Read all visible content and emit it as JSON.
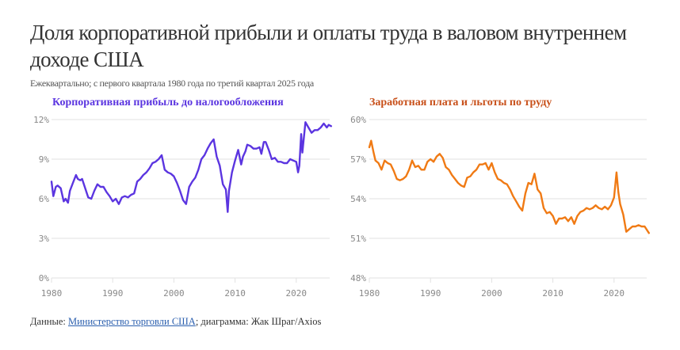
{
  "header": {
    "title": "Доля корпоративной прибыли и оплаты труда в валовом внутреннем доходе США",
    "subtitle": "Ежеквартально; с первого квартала 1980 года по третий квартал 2025 года"
  },
  "footer": {
    "prefix": "Данные: ",
    "source_link": "Министерство торговли США",
    "suffix": "; диаграмма: Жак Шраг/Axios"
  },
  "colors": {
    "profits": "#5b35e0",
    "labor": "#f07a14",
    "profits_title": "#5b35e0",
    "labor_title": "#c8501a",
    "grid": "#e2e2e2"
  },
  "chart_data": [
    {
      "type": "line",
      "title": "Корпоративная прибыль до налогообложения",
      "xlabel": "",
      "ylabel": "",
      "ylim": [
        0,
        12
      ],
      "yticks": [
        "0%",
        "3%",
        "6%",
        "9%",
        "12%"
      ],
      "xticks": [
        "1980",
        "1990",
        "2000",
        "2010",
        "2020"
      ],
      "grid": true,
      "series": [
        {
          "name": "Корпоративная прибыль до налогообложения",
          "x": [
            1980.0,
            1980.3,
            1980.7,
            1981.0,
            1981.5,
            1982.0,
            1982.3,
            1982.7,
            1983.0,
            1983.5,
            1984.0,
            1984.3,
            1984.7,
            1985.0,
            1985.5,
            1986.0,
            1986.5,
            1987.0,
            1987.5,
            1988.0,
            1988.5,
            1989.0,
            1989.5,
            1990.0,
            1990.5,
            1991.0,
            1991.5,
            1992.0,
            1992.5,
            1993.0,
            1993.5,
            1994.0,
            1994.5,
            1995.0,
            1995.5,
            1996.0,
            1996.5,
            1997.0,
            1997.5,
            1998.0,
            1998.5,
            1999.0,
            1999.5,
            2000.0,
            2000.5,
            2001.0,
            2001.5,
            2002.0,
            2002.5,
            2003.0,
            2003.5,
            2004.0,
            2004.5,
            2005.0,
            2005.5,
            2006.0,
            2006.5,
            2007.0,
            2007.5,
            2008.0,
            2008.5,
            2008.8,
            2009.0,
            2009.5,
            2010.0,
            2010.5,
            2011.0,
            2011.3,
            2011.7,
            2012.0,
            2012.5,
            2013.0,
            2013.5,
            2014.0,
            2014.3,
            2014.7,
            2015.0,
            2015.5,
            2016.0,
            2016.5,
            2017.0,
            2017.5,
            2018.0,
            2018.5,
            2019.0,
            2019.5,
            2020.0,
            2020.3,
            2020.5,
            2020.8,
            2021.0,
            2021.5,
            2022.0,
            2022.5,
            2023.0,
            2023.5,
            2024.0,
            2024.5,
            2025.0,
            2025.3,
            2025.7
          ],
          "values": [
            7.3,
            6.2,
            6.9,
            7.0,
            6.8,
            5.8,
            6.0,
            5.7,
            6.6,
            7.2,
            7.8,
            7.5,
            7.4,
            7.5,
            6.8,
            6.1,
            6.0,
            6.6,
            7.1,
            6.9,
            6.9,
            6.5,
            6.2,
            5.8,
            6.0,
            5.6,
            6.1,
            6.2,
            6.1,
            6.3,
            6.4,
            7.3,
            7.5,
            7.8,
            8.0,
            8.3,
            8.7,
            8.8,
            9.0,
            9.3,
            8.2,
            8.0,
            7.9,
            7.7,
            7.2,
            6.6,
            5.9,
            5.6,
            6.9,
            7.3,
            7.6,
            8.2,
            9.0,
            9.3,
            9.8,
            10.2,
            10.5,
            9.2,
            8.5,
            7.1,
            6.7,
            5.0,
            6.6,
            8.0,
            8.9,
            9.7,
            8.6,
            9.2,
            9.6,
            10.1,
            10.0,
            9.8,
            9.8,
            9.9,
            9.4,
            10.3,
            10.3,
            9.7,
            9.0,
            9.1,
            8.8,
            8.8,
            8.7,
            8.7,
            9.0,
            8.9,
            8.8,
            8.0,
            8.5,
            10.9,
            9.5,
            11.8,
            11.4,
            11.0,
            11.2,
            11.2,
            11.4,
            11.7,
            11.4,
            11.6,
            11.5
          ]
        }
      ]
    },
    {
      "type": "line",
      "title": "Заработная плата и льготы по труду",
      "xlabel": "",
      "ylabel": "",
      "ylim": [
        48,
        60
      ],
      "yticks": [
        "48%",
        "51%",
        "54%",
        "57%",
        "60%"
      ],
      "xticks": [
        "1980",
        "1990",
        "2000",
        "2010",
        "2020"
      ],
      "grid": true,
      "series": [
        {
          "name": "Заработная плата и льготы по труду",
          "x": [
            1980.0,
            1980.3,
            1980.7,
            1981.0,
            1981.5,
            1982.0,
            1982.5,
            1983.0,
            1983.5,
            1984.0,
            1984.5,
            1985.0,
            1985.5,
            1986.0,
            1986.5,
            1987.0,
            1987.5,
            1988.0,
            1988.5,
            1989.0,
            1989.5,
            1990.0,
            1990.5,
            1991.0,
            1991.5,
            1992.0,
            1992.5,
            1993.0,
            1993.5,
            1994.0,
            1994.5,
            1995.0,
            1995.5,
            1996.0,
            1996.5,
            1997.0,
            1997.5,
            1998.0,
            1998.5,
            1999.0,
            1999.5,
            2000.0,
            2000.5,
            2001.0,
            2001.5,
            2002.0,
            2002.5,
            2003.0,
            2003.5,
            2004.0,
            2004.5,
            2005.0,
            2005.5,
            2006.0,
            2006.5,
            2007.0,
            2007.5,
            2008.0,
            2008.5,
            2009.0,
            2009.5,
            2010.0,
            2010.5,
            2011.0,
            2011.5,
            2012.0,
            2012.5,
            2013.0,
            2013.5,
            2014.0,
            2014.5,
            2015.0,
            2015.5,
            2016.0,
            2016.5,
            2017.0,
            2017.5,
            2018.0,
            2018.5,
            2019.0,
            2019.5,
            2020.0,
            2020.4,
            2020.7,
            2021.0,
            2021.5,
            2022.0,
            2022.5,
            2023.0,
            2023.5,
            2024.0,
            2024.5,
            2025.0,
            2025.7
          ],
          "values": [
            57.9,
            58.4,
            57.5,
            56.9,
            56.7,
            56.2,
            56.9,
            56.7,
            56.6,
            56.1,
            55.5,
            55.4,
            55.5,
            55.7,
            56.2,
            56.9,
            56.4,
            56.5,
            56.2,
            56.2,
            56.8,
            57.0,
            56.8,
            57.2,
            57.4,
            57.1,
            56.4,
            56.2,
            55.8,
            55.5,
            55.2,
            55.0,
            54.9,
            55.6,
            55.7,
            56.0,
            56.2,
            56.6,
            56.6,
            56.7,
            56.2,
            56.7,
            56.0,
            55.5,
            55.4,
            55.2,
            55.1,
            54.7,
            54.2,
            53.8,
            53.4,
            53.1,
            54.4,
            55.2,
            55.1,
            55.9,
            54.7,
            54.4,
            53.3,
            52.9,
            53.0,
            52.7,
            52.1,
            52.5,
            52.5,
            52.6,
            52.3,
            52.6,
            52.1,
            52.7,
            53.0,
            53.1,
            53.3,
            53.2,
            53.3,
            53.5,
            53.3,
            53.2,
            53.4,
            53.2,
            53.5,
            54.1,
            56.0,
            54.5,
            53.6,
            52.8,
            51.5,
            51.7,
            51.9,
            51.9,
            52.0,
            51.9,
            51.9,
            51.4
          ]
        }
      ]
    }
  ]
}
